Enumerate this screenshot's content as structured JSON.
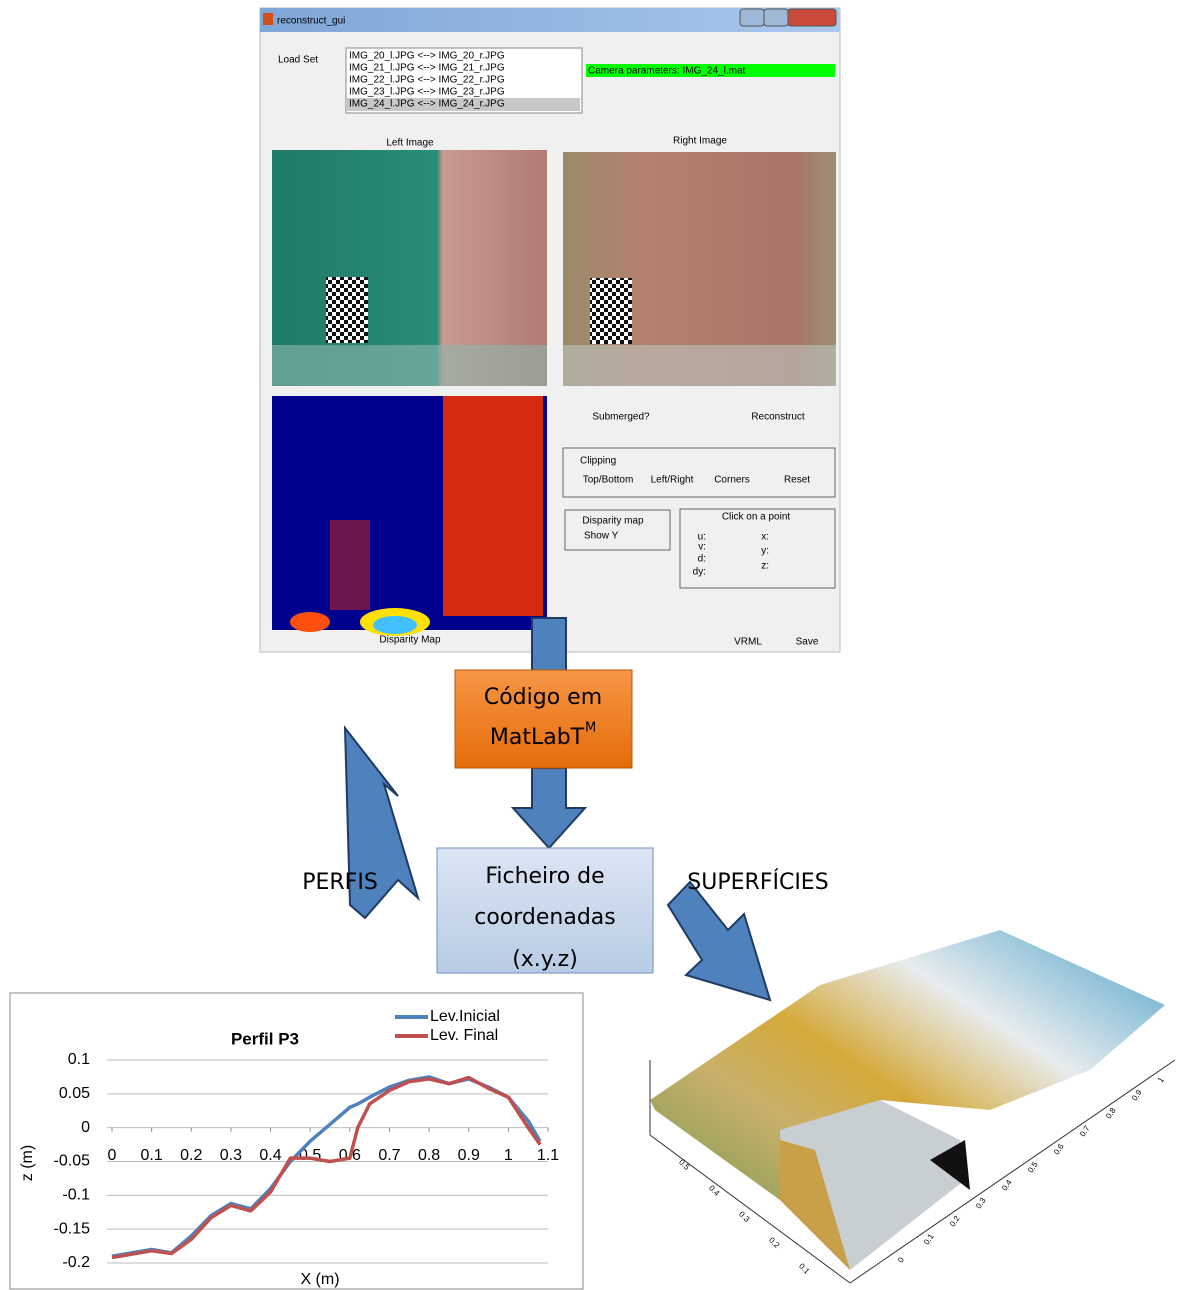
{
  "gui": {
    "window_title": "reconstruct_gui",
    "load_set": "Load Set",
    "list_items": [
      "IMG_20_l.JPG <--> IMG_20_r.JPG",
      "IMG_21_l.JPG <--> IMG_21_r.JPG",
      "IMG_22_l.JPG <--> IMG_22_r.JPG",
      "IMG_23_l.JPG <--> IMG_23_r.JPG",
      "IMG_24_l.JPG <--> IMG_24_r.JPG"
    ],
    "camera_parameters": "Camera parameters: IMG_24_l.mat",
    "left_image": "Left Image",
    "right_image": "Right Image",
    "disparity_map_label": "Disparity Map",
    "submerged": "Submerged?",
    "reconstruct": "Reconstruct",
    "clipping": {
      "title": "Clipping",
      "buttons": [
        "Top/Bottom",
        "Left/Right",
        "Corners",
        "Reset"
      ]
    },
    "disparity_panel": {
      "title": "Disparity map",
      "show_y": "Show Y"
    },
    "point_panel": {
      "title": "Click on a point",
      "left_labels": [
        "u:",
        "v:",
        "d:",
        "dy:"
      ],
      "right_labels": [
        "x:",
        "y:",
        "z:"
      ]
    },
    "vrml": "VRML",
    "save": "Save"
  },
  "flow": {
    "code_box": {
      "line1": "Código em",
      "line2": "MatLabT",
      "superscript": "M"
    },
    "file_box": {
      "lines": [
        "Ficheiro de",
        "coordenadas",
        "(x.y.z)"
      ]
    },
    "left_label": "PERFIS",
    "right_label": "SUPERFÍCIES"
  },
  "chart_data": {
    "type": "line",
    "title": "Perfil P3",
    "x_label": "X  (m)",
    "y_label": "z (m)",
    "x": [
      0,
      0.05,
      0.1,
      0.15,
      0.2,
      0.25,
      0.3,
      0.35,
      0.4,
      0.45,
      0.5,
      0.55,
      0.6,
      0.62,
      0.65,
      0.7,
      0.75,
      0.8,
      0.85,
      0.9,
      0.95,
      1.0,
      1.05,
      1.08
    ],
    "series": [
      {
        "name": "Lev.Inicial",
        "color": "#4f81bd",
        "values": [
          -0.19,
          -0.185,
          -0.18,
          -0.185,
          -0.16,
          -0.13,
          -0.112,
          -0.12,
          -0.09,
          -0.05,
          -0.02,
          0.005,
          0.03,
          0.035,
          0.045,
          0.06,
          0.07,
          0.075,
          0.065,
          0.072,
          0.06,
          0.045,
          0.01,
          -0.02
        ]
      },
      {
        "name": "Lev. Final",
        "color": "#c0504d",
        "values": [
          -0.192,
          -0.187,
          -0.182,
          -0.186,
          -0.165,
          -0.133,
          -0.115,
          -0.123,
          -0.095,
          -0.045,
          -0.045,
          -0.05,
          -0.045,
          0.0,
          0.035,
          0.055,
          0.068,
          0.072,
          0.065,
          0.074,
          0.058,
          0.045,
          0.0,
          -0.025
        ]
      }
    ],
    "xlim": [
      0,
      1.1
    ],
    "xticks": [
      0,
      0.1,
      0.2,
      0.3,
      0.4,
      0.5,
      0.6,
      0.7,
      0.8,
      0.9,
      1,
      1.1
    ],
    "ylim": [
      -0.2,
      0.1
    ],
    "yticks": [
      -0.2,
      -0.15,
      -0.1,
      -0.05,
      0,
      0.05,
      0.1
    ],
    "grid": true,
    "legend": "top-right"
  },
  "surface": {
    "x_labels": [
      "0",
      "0.1",
      "0.2",
      "0.3",
      "0.4",
      "0.5",
      "0.6",
      "0.7",
      "0.8",
      "0.9",
      "1"
    ],
    "y_labels": [
      "0.1",
      "0.2",
      "0.3",
      "0.4",
      "0.5"
    ]
  }
}
